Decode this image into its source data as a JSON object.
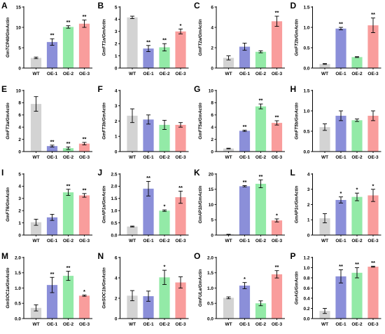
{
  "categories": [
    "WT",
    "OE-1",
    "OE-2",
    "OE-3"
  ],
  "colors": {
    "WT": "#d3d3d3",
    "OE-1": "#8b8fd9",
    "OE-2": "#93eaa7",
    "OE-3": "#f99d9c",
    "axis": "#000000"
  },
  "chart_data": [
    {
      "panel": "A",
      "type": "bar",
      "ylabel": "GmTCP40/GmActin",
      "ylim": [
        0,
        15
      ],
      "yticks": [
        0,
        5,
        10,
        15
      ],
      "yticklabels": [
        "0",
        "5",
        "10",
        "15"
      ],
      "categories": [
        "WT",
        "OE-1",
        "OE-2",
        "OE-3"
      ],
      "values": [
        2.5,
        6.4,
        10.1,
        10.9
      ],
      "errors": [
        0.2,
        0.8,
        0.3,
        0.9
      ],
      "significance": [
        "",
        "**",
        "**",
        "**"
      ]
    },
    {
      "panel": "B",
      "type": "bar",
      "ylabel": "GmFT1a/GmActin",
      "ylim": [
        0,
        5
      ],
      "yticks": [
        0,
        1,
        2,
        3,
        4,
        5
      ],
      "yticklabels": [
        "0",
        "1",
        "2",
        "3",
        "4",
        "5"
      ],
      "categories": [
        "WT",
        "OE-1",
        "OE-2",
        "OE-3"
      ],
      "values": [
        4.15,
        1.6,
        1.7,
        3.0
      ],
      "errors": [
        0.1,
        0.25,
        0.3,
        0.2
      ],
      "significance": [
        "",
        "**",
        "**",
        "*"
      ]
    },
    {
      "panel": "C",
      "type": "bar",
      "ylabel": "GmFT2a/GmActin",
      "ylim": [
        0,
        6
      ],
      "yticks": [
        0,
        2,
        4,
        6
      ],
      "yticklabels": [
        "0",
        "2",
        "4",
        "6"
      ],
      "categories": [
        "WT",
        "OE-1",
        "OE-2",
        "OE-3"
      ],
      "values": [
        1.0,
        2.1,
        1.6,
        4.6
      ],
      "errors": [
        0.2,
        0.35,
        0.1,
        0.5
      ],
      "significance": [
        "",
        "",
        "",
        "**"
      ]
    },
    {
      "panel": "D",
      "type": "bar",
      "ylabel": "GmFT2b/GmActin",
      "ylim": [
        0,
        1.5
      ],
      "yticks": [
        0,
        0.5,
        1.0,
        1.5
      ],
      "yticklabels": [
        "0.0",
        "0.5",
        "1.0",
        "1.5"
      ],
      "categories": [
        "WT",
        "OE-1",
        "OE-2",
        "OE-3"
      ],
      "values": [
        0.1,
        0.97,
        0.27,
        1.05
      ],
      "errors": [
        0.01,
        0.03,
        0.01,
        0.18
      ],
      "significance": [
        "",
        "**",
        "",
        "**"
      ]
    },
    {
      "panel": "E",
      "type": "bar",
      "ylabel": "GmFT3a/GmActin",
      "ylim": [
        0,
        10
      ],
      "yticks": [
        0,
        2,
        4,
        6,
        8,
        10
      ],
      "yticklabels": [
        "0",
        "2",
        "4",
        "6",
        "8",
        "10"
      ],
      "categories": [
        "WT",
        "OE-1",
        "OE-2",
        "OE-3"
      ],
      "values": [
        7.8,
        0.9,
        0.55,
        1.3
      ],
      "errors": [
        1.2,
        0.15,
        0.2,
        0.2
      ],
      "significance": [
        "",
        "**",
        "**",
        "**"
      ]
    },
    {
      "panel": "F",
      "type": "bar",
      "ylabel": "GmFT3b/GmActin",
      "ylim": [
        0,
        4
      ],
      "yticks": [
        0,
        1,
        2,
        3,
        4
      ],
      "yticklabels": [
        "0",
        "1",
        "2",
        "3",
        "4"
      ],
      "categories": [
        "WT",
        "OE-1",
        "OE-2",
        "OE-3"
      ],
      "values": [
        2.35,
        2.1,
        1.75,
        1.75
      ],
      "errors": [
        0.45,
        0.3,
        0.3,
        0.15
      ],
      "significance": [
        "",
        "",
        "",
        ""
      ]
    },
    {
      "panel": "G",
      "type": "bar",
      "ylabel": "GmFT5a/GmActin",
      "ylim": [
        0,
        10
      ],
      "yticks": [
        0,
        2,
        4,
        6,
        8,
        10
      ],
      "yticklabels": [
        "0",
        "2",
        "4",
        "6",
        "8",
        "10"
      ],
      "categories": [
        "WT",
        "OE-1",
        "OE-2",
        "OE-3"
      ],
      "values": [
        0.5,
        3.4,
        7.4,
        4.7
      ],
      "errors": [
        0.05,
        0.1,
        0.4,
        0.35
      ],
      "significance": [
        "",
        "**",
        "**",
        "**"
      ]
    },
    {
      "panel": "H",
      "type": "bar",
      "ylabel": "GmFT5b/GmActin",
      "ylim": [
        0,
        1.5
      ],
      "yticks": [
        0,
        0.5,
        1.0,
        1.5
      ],
      "yticklabels": [
        "0.0",
        "0.5",
        "1.0",
        "1.5"
      ],
      "categories": [
        "WT",
        "OE-1",
        "OE-2",
        "OE-3"
      ],
      "values": [
        0.6,
        0.88,
        0.77,
        0.88
      ],
      "errors": [
        0.08,
        0.12,
        0.03,
        0.12
      ],
      "significance": [
        "",
        "",
        "",
        ""
      ]
    },
    {
      "panel": "I",
      "type": "bar",
      "ylabel": "GmFT6/GmActin",
      "ylim": [
        0,
        5
      ],
      "yticks": [
        0,
        1,
        2,
        3,
        4,
        5
      ],
      "yticklabels": [
        "0",
        "1",
        "2",
        "3",
        "4",
        "5"
      ],
      "categories": [
        "WT",
        "OE-1",
        "OE-2",
        "OE-3"
      ],
      "values": [
        1.05,
        1.45,
        3.5,
        3.25
      ],
      "errors": [
        0.25,
        0.25,
        0.25,
        0.15
      ],
      "significance": [
        "",
        "",
        "**",
        "**"
      ]
    },
    {
      "panel": "J",
      "type": "bar",
      "ylabel": "GmAP1a/GmActin",
      "ylim": [
        0,
        2.5
      ],
      "yticks": [
        0,
        0.5,
        1.0,
        1.5,
        2.0,
        2.5
      ],
      "yticklabels": [
        "0.0",
        "0.5",
        "1.0",
        "1.5",
        "2.0",
        "2.5"
      ],
      "categories": [
        "WT",
        "OE-1",
        "OE-2",
        "OE-3"
      ],
      "values": [
        0.35,
        1.9,
        1.0,
        1.55
      ],
      "errors": [
        0.02,
        0.3,
        0.03,
        0.25
      ],
      "significance": [
        "",
        "**",
        "*",
        "**"
      ]
    },
    {
      "panel": "K",
      "type": "bar",
      "ylabel": "GmAP1b/GmActin",
      "ylim": [
        0,
        20
      ],
      "yticks": [
        0,
        5,
        10,
        15,
        20
      ],
      "yticklabels": [
        "0",
        "5",
        "10",
        "15",
        "20"
      ],
      "categories": [
        "WT",
        "OE-1",
        "OE-2",
        "OE-3"
      ],
      "values": [
        0.2,
        16.0,
        16.8,
        4.8
      ],
      "errors": [
        0.05,
        0.2,
        1.3,
        0.5
      ],
      "significance": [
        "",
        "**",
        "**",
        "*"
      ]
    },
    {
      "panel": "L",
      "type": "bar",
      "ylabel": "GmAP1c/GmActin",
      "ylim": [
        0,
        4
      ],
      "yticks": [
        0,
        1,
        2,
        3,
        4
      ],
      "yticklabels": [
        "0",
        "1",
        "2",
        "3",
        "4"
      ],
      "categories": [
        "WT",
        "OE-1",
        "OE-2",
        "OE-3"
      ],
      "values": [
        1.1,
        2.3,
        2.5,
        2.6
      ],
      "errors": [
        0.3,
        0.2,
        0.25,
        0.4
      ],
      "significance": [
        "",
        "*",
        "*",
        "*"
      ]
    },
    {
      "panel": "M",
      "type": "bar",
      "ylabel": "GmSOC1a/GmActin",
      "ylim": [
        0,
        2.0
      ],
      "yticks": [
        0,
        0.5,
        1.0,
        1.5,
        2.0
      ],
      "yticklabels": [
        "0.0",
        "0.5",
        "1.0",
        "1.5",
        "2.0"
      ],
      "categories": [
        "WT",
        "OE-1",
        "OE-2",
        "OE-3"
      ],
      "values": [
        0.35,
        1.1,
        1.4,
        0.75
      ],
      "errors": [
        0.1,
        0.25,
        0.15,
        0.02
      ],
      "significance": [
        "",
        "**",
        "**",
        "*"
      ]
    },
    {
      "panel": "N",
      "type": "bar",
      "ylabel": "GmSOC1b/GmActin",
      "ylim": [
        0,
        6
      ],
      "yticks": [
        0,
        2,
        4,
        6
      ],
      "yticklabels": [
        "0",
        "2",
        "4",
        "6"
      ],
      "categories": [
        "WT",
        "OE-1",
        "OE-2",
        "OE-3"
      ],
      "values": [
        2.25,
        2.2,
        4.05,
        3.55
      ],
      "errors": [
        0.5,
        0.5,
        0.7,
        0.55
      ],
      "significance": [
        "",
        "",
        "*",
        ""
      ]
    },
    {
      "panel": "O",
      "type": "bar",
      "ylabel": "GmFULa/GmActin",
      "ylim": [
        0,
        2.0
      ],
      "yticks": [
        0,
        0.5,
        1.0,
        1.5,
        2.0
      ],
      "yticklabels": [
        "0.0",
        "0.5",
        "1.0",
        "1.5",
        "2.0"
      ],
      "categories": [
        "WT",
        "OE-1",
        "OE-2",
        "OE-3"
      ],
      "values": [
        0.68,
        1.08,
        0.5,
        1.45
      ],
      "errors": [
        0.03,
        0.1,
        0.08,
        0.12
      ],
      "significance": [
        "",
        "*",
        "",
        "**"
      ]
    },
    {
      "panel": "P",
      "type": "bar",
      "ylabel": "GmAG/GmActin",
      "ylim": [
        0,
        1.2
      ],
      "yticks": [
        0,
        0.2,
        0.4,
        0.6,
        0.8,
        1.0,
        1.2
      ],
      "yticklabels": [
        "0.0",
        "0.2",
        "0.4",
        "0.6",
        "0.8",
        "1.0",
        "1.2"
      ],
      "categories": [
        "WT",
        "OE-1",
        "OE-2",
        "OE-3"
      ],
      "values": [
        0.15,
        0.83,
        0.9,
        1.02
      ],
      "errors": [
        0.05,
        0.13,
        0.1,
        0.01
      ],
      "significance": [
        "",
        "**",
        "**",
        "**"
      ]
    }
  ]
}
